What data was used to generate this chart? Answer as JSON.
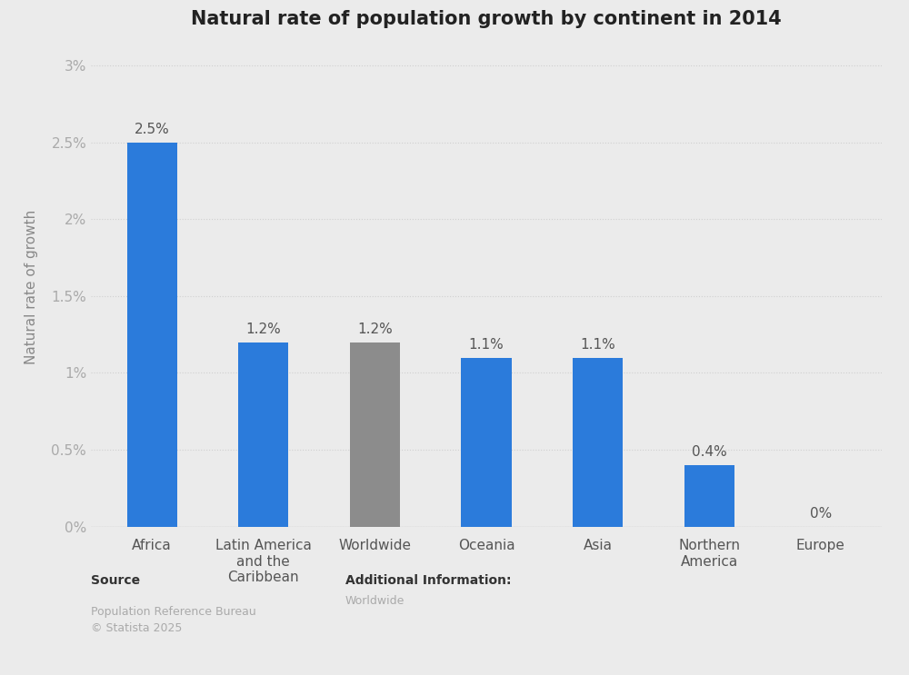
{
  "title": "Natural rate of population growth by continent in 2014",
  "categories": [
    "Africa",
    "Latin America\nand the\nCaribbean",
    "Worldwide",
    "Oceania",
    "Asia",
    "Northern\nAmerica",
    "Europe"
  ],
  "values": [
    2.5,
    1.2,
    1.2,
    1.1,
    1.1,
    0.4,
    0.0
  ],
  "bar_colors": [
    "#2b7bdb",
    "#2b7bdb",
    "#8c8c8c",
    "#2b7bdb",
    "#2b7bdb",
    "#2b7bdb",
    "#2b7bdb"
  ],
  "labels": [
    "2.5%",
    "1.2%",
    "1.2%",
    "1.1%",
    "1.1%",
    "0.4%",
    "0%"
  ],
  "ylabel": "Natural rate of growth",
  "ylim": [
    0,
    3.0
  ],
  "yticks": [
    0,
    0.5,
    1.0,
    1.5,
    2.0,
    2.5,
    3.0
  ],
  "ytick_labels": [
    "0%",
    "0.5%",
    "1%",
    "1.5%",
    "2%",
    "2.5%",
    "3%"
  ],
  "background_color": "#ebebeb",
  "plot_bg_color": "#ebebeb",
  "source_text": "Source",
  "source_detail": "Population Reference Bureau\n© Statista 2025",
  "additional_info_label": "Additional Information:",
  "additional_info_value": "Worldwide",
  "title_fontsize": 15,
  "label_fontsize": 11,
  "axis_fontsize": 11,
  "tick_fontsize": 11,
  "bar_width": 0.45
}
